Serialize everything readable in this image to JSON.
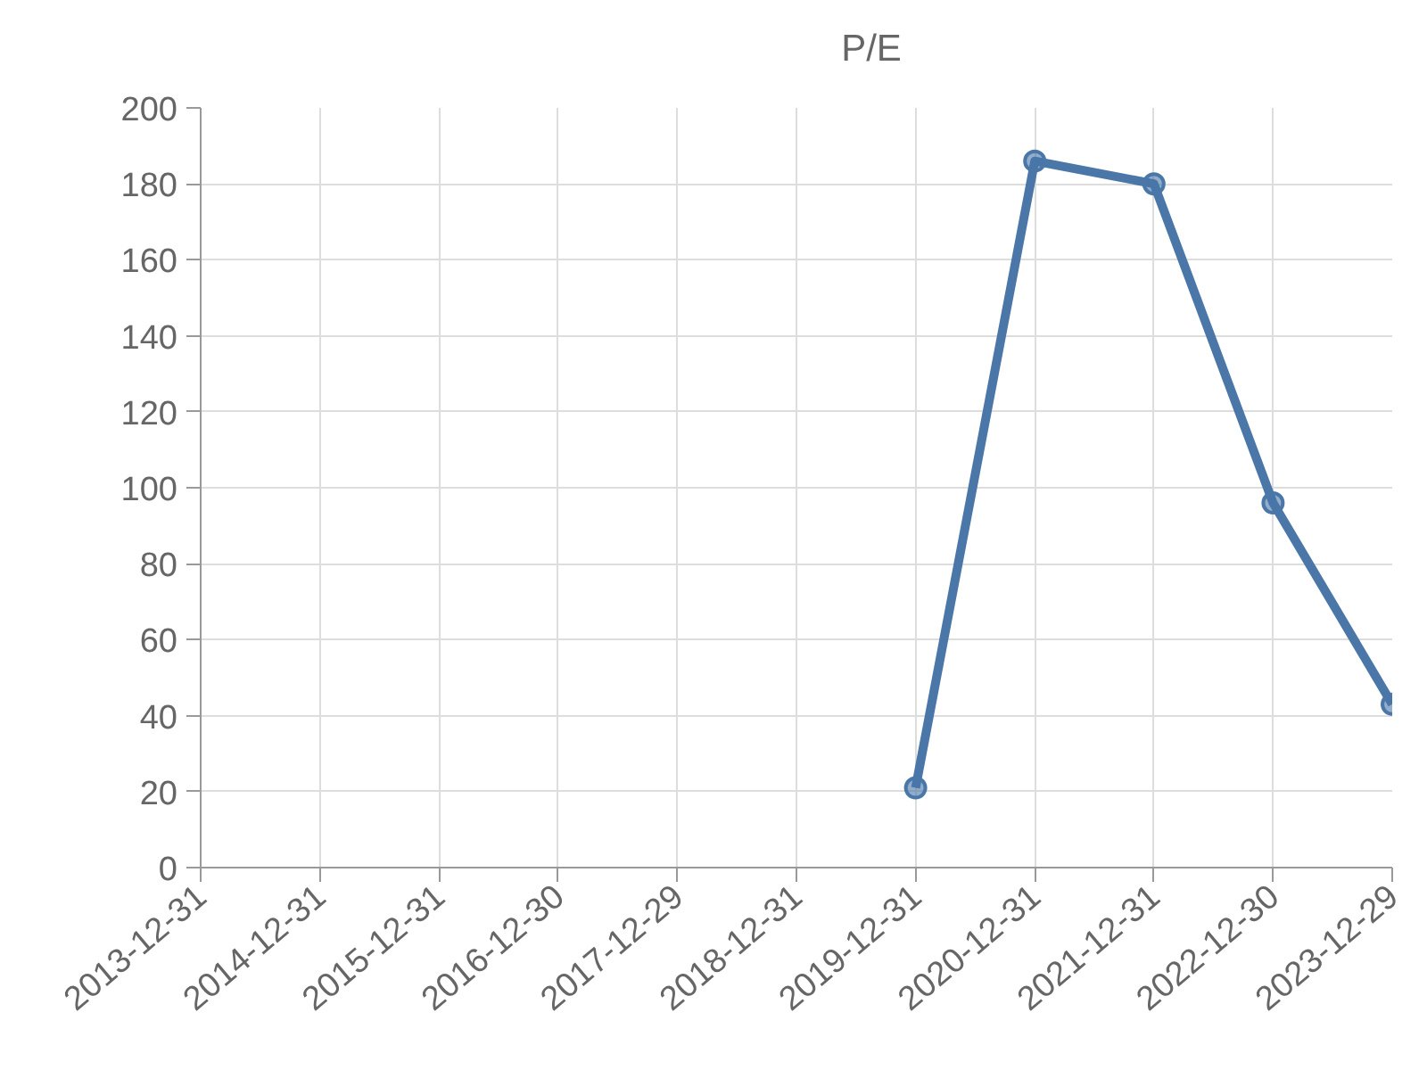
{
  "chart_data": {
    "type": "line",
    "categories": [
      "2013-12-31",
      "2014-12-31",
      "2015-12-31",
      "2016-12-30",
      "2017-12-29",
      "2018-12-31",
      "2019-12-31",
      "2020-12-31",
      "2021-12-31",
      "2022-12-30",
      "2023-12-29"
    ],
    "series": [
      {
        "name": "P/E",
        "color": "#4a76a8",
        "values": [
          null,
          null,
          null,
          null,
          null,
          null,
          21,
          186,
          180,
          96,
          43
        ]
      }
    ],
    "ylim": [
      0,
      200
    ],
    "yticks": [
      0,
      20,
      40,
      60,
      80,
      100,
      120,
      140,
      160,
      180,
      200
    ],
    "grid": true,
    "legend": "top",
    "marker": "circle",
    "line_style": "solid"
  }
}
